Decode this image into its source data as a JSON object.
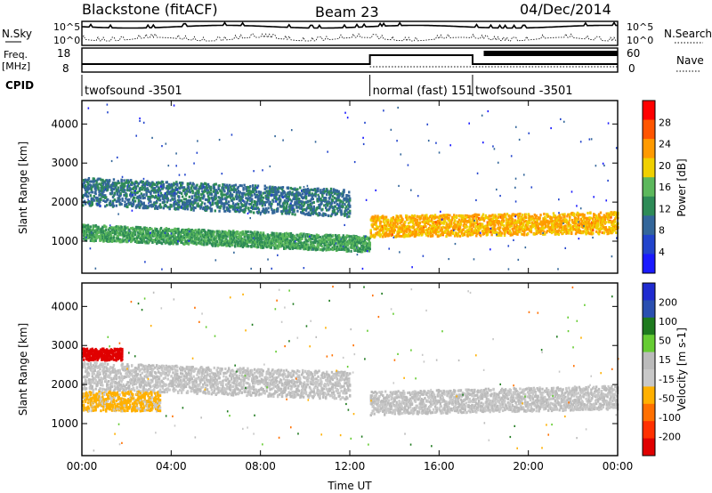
{
  "header": {
    "station": "Blackstone (fitACF)",
    "beam": "Beam 23",
    "date": "04/Dec/2014"
  },
  "strip_labels": {
    "nsky": "N.Sky",
    "nsky_top": "10^5",
    "nsky_bottom": "10^0",
    "nsearch": "N.Search",
    "nsearch_top": "10^5",
    "nsearch_bottom": "10^0",
    "freq": "Freq.",
    "freq_unit": "[MHz]",
    "freq_top": "18",
    "freq_bottom": "8",
    "nave": "Nave",
    "nave_top": "60",
    "nave_bottom": "0",
    "cpid": "CPID"
  },
  "cpid_segments": [
    {
      "label": "twofsound -3501",
      "start_hour": 0.0,
      "end_hour": 12.9
    },
    {
      "label": "normal (fast) 151",
      "start_hour": 12.9,
      "end_hour": 17.5
    },
    {
      "label": "twofsound -3501",
      "start_hour": 17.5,
      "end_hour": 24.0
    }
  ],
  "colors": {
    "power_scale": [
      "#1a1aff",
      "#2244cc",
      "#33669a",
      "#2e8b57",
      "#5cb85c",
      "#f0d000",
      "#ff9a00",
      "#ff5500",
      "#ff0000"
    ],
    "velocity_scale": [
      "#1f2bd0",
      "#2a4fb0",
      "#1e7a1e",
      "#66cc33",
      "#bbbbbb",
      "#c8c8c8",
      "#ffb000",
      "#ff7000",
      "#ff3000",
      "#e00000"
    ]
  },
  "chart_data": [
    {
      "type": "heatmap",
      "panel": "power",
      "xlabel": "Time UT",
      "ylabel": "Slant Range [km]",
      "xlim": [
        0,
        24
      ],
      "ylim": [
        180,
        4600
      ],
      "x_tick_labels": [
        "00:00",
        "04:00",
        "08:00",
        "12:00",
        "16:00",
        "20:00",
        "00:00"
      ],
      "x_ticks": [
        0,
        4,
        8,
        12,
        16,
        20,
        24
      ],
      "y_ticks": [
        1000,
        2000,
        3000,
        4000
      ],
      "y_tick_labels": [
        "1000",
        "2000",
        "3000",
        "4000"
      ],
      "colorbar_label": "Power [dB]",
      "colorbar_ticks": [
        "4",
        "8",
        "12",
        "16",
        "20",
        "24",
        "28"
      ],
      "colorbar_range": [
        0,
        32
      ],
      "echo_bands": [
        {
          "t0": 0.0,
          "t1": 12.0,
          "r_center_start": 2300,
          "r_center_end": 2000,
          "width": 700,
          "level": 10
        },
        {
          "t0": 0.0,
          "t1": 12.9,
          "r_center_start": 1250,
          "r_center_end": 950,
          "width": 400,
          "level": 14
        },
        {
          "t0": 12.9,
          "t1": 24.0,
          "r_center_start": 1400,
          "r_center_end": 1500,
          "width": 550,
          "level": 22
        }
      ]
    },
    {
      "type": "heatmap",
      "panel": "velocity",
      "xlabel": "Time UT",
      "ylabel": "Slant Range [km]",
      "xlim": [
        0,
        24
      ],
      "ylim": [
        180,
        4600
      ],
      "x_tick_labels": [
        "00:00",
        "04:00",
        "08:00",
        "12:00",
        "16:00",
        "20:00",
        "00:00"
      ],
      "x_ticks": [
        0,
        4,
        8,
        12,
        16,
        20,
        24
      ],
      "y_ticks": [
        1000,
        2000,
        3000,
        4000
      ],
      "y_tick_labels": [
        "1000",
        "2000",
        "3000",
        "4000"
      ],
      "colorbar_label": "Velocity [m s-1]",
      "colorbar_ticks": [
        "200",
        "100",
        "50",
        "15",
        "-15",
        "-50",
        "-100",
        "-200"
      ],
      "colorbar_range": [
        -250,
        250
      ],
      "echo_bands": [
        {
          "t0": 0.0,
          "t1": 12.0,
          "r_center_start": 2250,
          "r_center_end": 2000,
          "width": 700,
          "level": 0
        },
        {
          "t0": 0.0,
          "t1": 1.8,
          "r_center_start": 2800,
          "r_center_end": 2800,
          "width": 300,
          "level": -220
        },
        {
          "t0": 0.0,
          "t1": 3.5,
          "r_center_start": 1600,
          "r_center_end": 1600,
          "width": 500,
          "level": -60
        },
        {
          "t0": 12.9,
          "t1": 24.0,
          "r_center_start": 1550,
          "r_center_end": 1700,
          "width": 600,
          "level": 0
        }
      ]
    }
  ]
}
